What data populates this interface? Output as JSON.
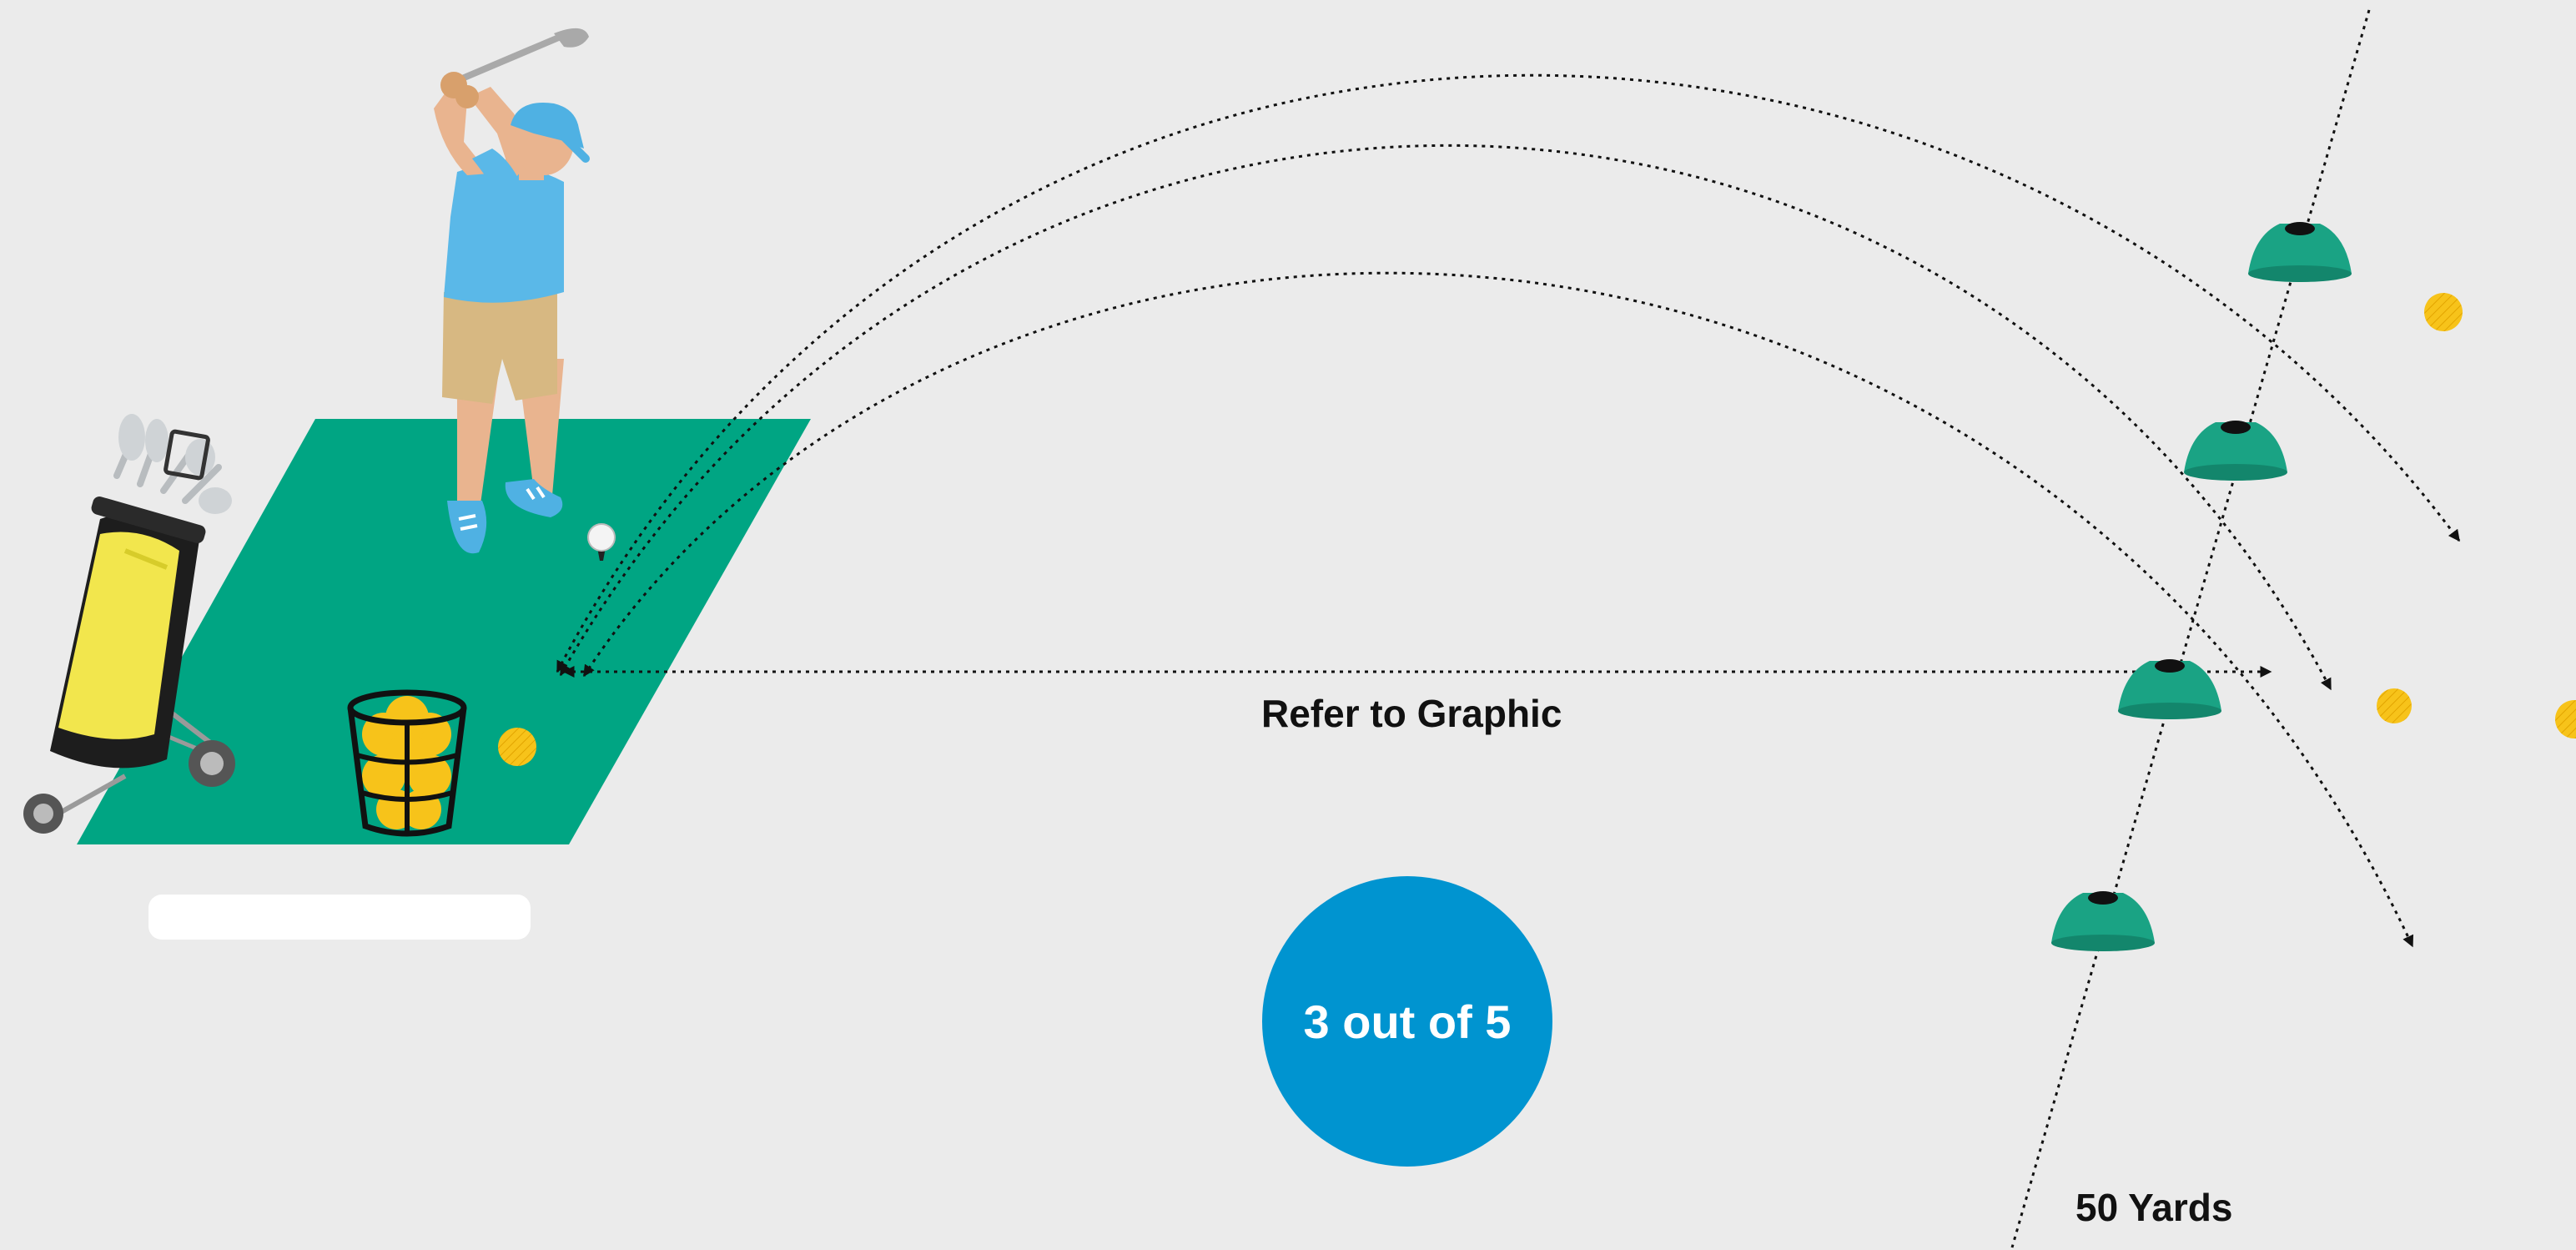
{
  "diagram": {
    "range_label": "Refer to Graphic",
    "distance_label": "50 Yards",
    "score_text": "3 out of 5",
    "colors": {
      "background": "#ebebeb",
      "mat": "#00a583",
      "cone": "#1aa384",
      "ball_yellow": "#f7c31a",
      "score_circle": "#0094d0",
      "shirt": "#5ab8e8",
      "shorts": "#d7b882",
      "bag_body": "#f2e64d"
    },
    "icons": [
      "golfer-icon",
      "golf-bag-icon",
      "ball-basket-icon",
      "tee-ball-icon",
      "cone-icon",
      "golf-ball-icon",
      "shot-trajectory-line",
      "distance-line"
    ]
  }
}
